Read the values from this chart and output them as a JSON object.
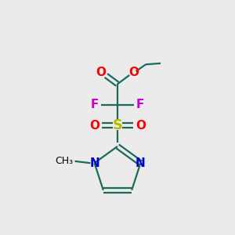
{
  "bg_color": "#ebebeb",
  "atom_colors": {
    "C": "#000000",
    "O": "#ff0000",
    "N": "#0000cc",
    "F": "#cc00cc",
    "S": "#b8b800",
    "bond": "#1a6b5a"
  },
  "figsize": [
    3.0,
    3.0
  ],
  "dpi": 100,
  "xlim": [
    0,
    10
  ],
  "ylim": [
    0,
    10
  ]
}
